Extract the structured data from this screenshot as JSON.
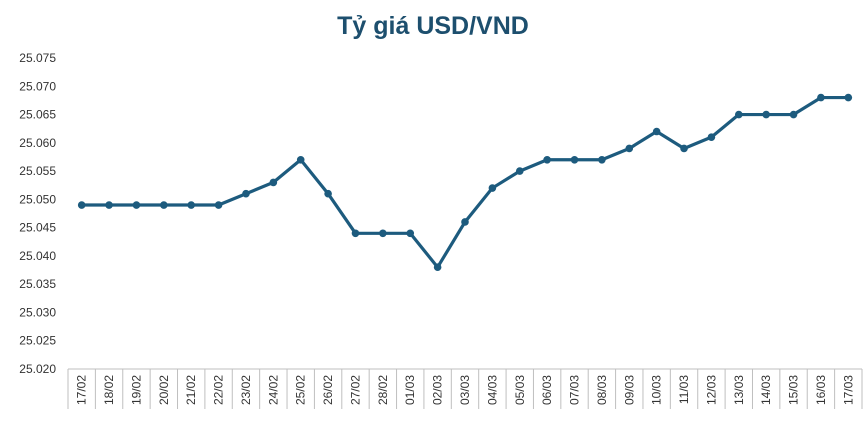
{
  "chart_data": {
    "type": "line",
    "title": "Tỷ giá USD/VND",
    "xlabel": "",
    "ylabel": "",
    "ylim": [
      25020,
      25075
    ],
    "ytick_step": 5,
    "ytick_labels": [
      "25.020",
      "25.025",
      "25.030",
      "25.035",
      "25.040",
      "25.045",
      "25.050",
      "25.055",
      "25.060",
      "25.065",
      "25.070",
      "25.075"
    ],
    "categories": [
      "17/02",
      "18/02",
      "19/02",
      "20/02",
      "21/02",
      "22/02",
      "23/02",
      "24/02",
      "25/02",
      "26/02",
      "27/02",
      "28/02",
      "01/03",
      "02/03",
      "03/03",
      "04/03",
      "05/03",
      "06/03",
      "07/03",
      "08/03",
      "09/03",
      "10/03",
      "11/03",
      "12/03",
      "13/03",
      "14/03",
      "15/03",
      "16/03",
      "17/03"
    ],
    "series": [
      {
        "values": [
          25049,
          25049,
          25049,
          25049,
          25049,
          25049,
          25051,
          25053,
          25057,
          25051,
          25044,
          25044,
          25044,
          25038,
          25046,
          25052,
          25055,
          25057,
          25057,
          25057,
          25059,
          25062,
          25059,
          25061,
          25065,
          25065,
          25065,
          25068,
          25068
        ]
      }
    ],
    "line_color": "#1d5b7e",
    "grid": false,
    "legend": "none"
  }
}
